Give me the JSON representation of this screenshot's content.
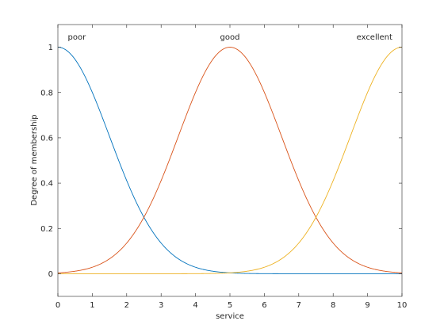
{
  "chart_data": {
    "type": "line",
    "title": "",
    "xlabel": "service",
    "ylabel": "Degree of membership",
    "xlim": [
      0,
      10
    ],
    "ylim": [
      -0.1,
      1.1
    ],
    "x_ticks": [
      "0",
      "1",
      "2",
      "3",
      "4",
      "5",
      "6",
      "7",
      "8",
      "9",
      "10"
    ],
    "y_ticks": [
      "0",
      "0.2",
      "0.4",
      "0.6",
      "0.8",
      "1"
    ],
    "grid": false,
    "legend": "none",
    "series": [
      {
        "name": "poor",
        "function": "gaussian",
        "center": 0,
        "sigma": 1.5,
        "color": "#0072BD",
        "label_x": 0.55
      },
      {
        "name": "good",
        "function": "gaussian",
        "center": 5,
        "sigma": 1.5,
        "color": "#D95319",
        "label_x": 5
      },
      {
        "name": "excellent",
        "function": "gaussian",
        "center": 10,
        "sigma": 1.5,
        "color": "#EDB120",
        "label_x": 9.2
      }
    ]
  }
}
